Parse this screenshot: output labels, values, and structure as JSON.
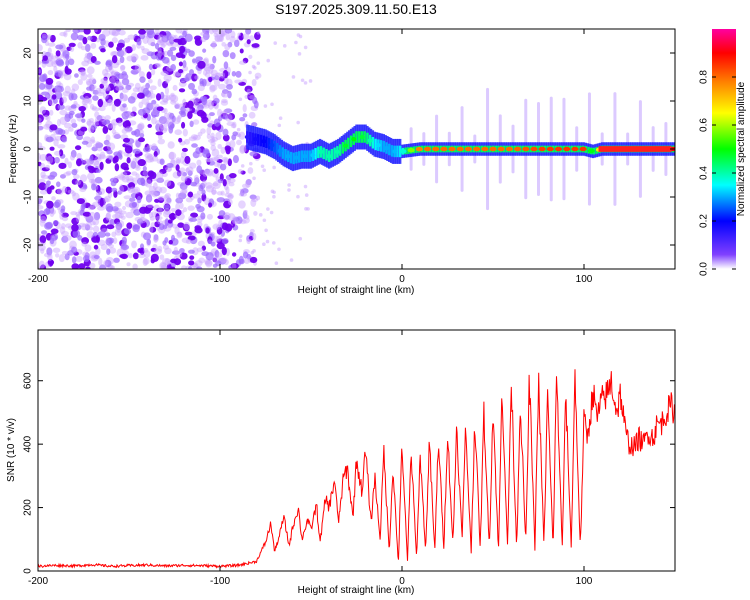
{
  "figure_title": "S197.2025.309.11.50.E13",
  "colorbar": {
    "label": "Normalized spectral amplitude",
    "range": [
      0,
      1
    ],
    "ticks": [
      0.0,
      0.2,
      0.4,
      0.6,
      0.8
    ],
    "tick_labels": [
      "0.0",
      "0.2",
      "0.4",
      "0.6",
      "0.8"
    ],
    "colormap": [
      "#ffffff",
      "#8040ff",
      "#0000ff",
      "#00ffff",
      "#00ff00",
      "#ffff00",
      "#ff8000",
      "#ff0000",
      "#ff00a0"
    ]
  },
  "colors": {
    "snr_line": "#ff0000",
    "scatter_low": "#c8a0ff",
    "scatter_high": "#7000ee"
  },
  "chart_data": [
    {
      "type": "heatmap",
      "title": "",
      "xlabel": "Height of straight line (km)",
      "ylabel": "Frequency (Hz)",
      "xlim": [
        -200,
        150
      ],
      "ylim": [
        -25,
        25
      ],
      "x_ticks": [
        -200,
        -100,
        0,
        100
      ],
      "x_tick_labels": [
        "-200",
        "-100",
        "0",
        "100"
      ],
      "y_ticks": [
        -20,
        -10,
        0,
        10,
        20
      ],
      "y_tick_labels": [
        "-20",
        "-10",
        "0",
        "10",
        "20"
      ],
      "noise_region": {
        "x_range": [
          -200,
          -85
        ],
        "note": "scattered low-amplitude noise across all frequencies"
      },
      "signal_track": {
        "x": [
          -85,
          -80,
          -75,
          -70,
          -65,
          -60,
          -55,
          -50,
          -45,
          -40,
          -35,
          -30,
          -25,
          -20,
          -15,
          -10,
          -5,
          0,
          10,
          20,
          40,
          60,
          80,
          100,
          105,
          110,
          120,
          130,
          140,
          150
        ],
        "frequency": [
          2.5,
          2,
          1.5,
          0.5,
          -1,
          -2,
          -1.5,
          -1.5,
          -0.5,
          -1.5,
          -0.5,
          1,
          2.5,
          2.5,
          1,
          0.5,
          -0.5,
          -0.5,
          0,
          0,
          0,
          0,
          0,
          0,
          -0.5,
          0,
          0,
          0,
          0,
          0
        ],
        "amplitude": [
          0.15,
          0.18,
          0.2,
          0.25,
          0.3,
          0.3,
          0.3,
          0.3,
          0.4,
          0.4,
          0.4,
          0.5,
          0.5,
          0.45,
          0.35,
          0.3,
          0.3,
          0.35,
          0.8,
          0.8,
          0.8,
          0.8,
          0.85,
          0.85,
          0.4,
          0.8,
          0.85,
          0.85,
          0.9,
          0.9
        ]
      }
    },
    {
      "type": "line",
      "title": "",
      "xlabel": "Height of straight line (km)",
      "ylabel": "SNR (10 * v/v)",
      "xlim": [
        -200,
        150
      ],
      "ylim": [
        0,
        760
      ],
      "x_ticks": [
        -200,
        -100,
        0,
        100
      ],
      "x_tick_labels": [
        "-200",
        "-100",
        "0",
        "100"
      ],
      "y_ticks": [
        0,
        200,
        400,
        600
      ],
      "y_tick_labels": [
        "0",
        "200",
        "400",
        "600"
      ],
      "series": [
        {
          "name": "SNR",
          "x": [
            -200,
            -190,
            -180,
            -170,
            -160,
            -150,
            -140,
            -130,
            -120,
            -110,
            -100,
            -90,
            -80,
            -75,
            -72,
            -70,
            -67,
            -65,
            -62,
            -60,
            -57,
            -55,
            -52,
            -50,
            -47,
            -45,
            -42,
            -40,
            -37,
            -35,
            -32,
            -30,
            -27,
            -25,
            -22,
            -20,
            -17,
            -15,
            -12,
            -10,
            -7,
            -5,
            -2,
            0,
            3,
            5,
            8,
            10,
            13,
            15,
            18,
            20,
            23,
            25,
            28,
            30,
            33,
            35,
            38,
            40,
            43,
            45,
            48,
            50,
            53,
            55,
            58,
            60,
            63,
            65,
            68,
            70,
            73,
            75,
            78,
            80,
            83,
            85,
            88,
            90,
            93,
            95,
            98,
            100,
            102,
            105,
            107,
            110,
            113,
            115,
            118,
            120,
            123,
            125,
            128,
            130,
            133,
            135,
            138,
            140,
            143,
            145,
            148,
            150
          ],
          "values": [
            15,
            18,
            16,
            20,
            15,
            17,
            19,
            16,
            18,
            17,
            15,
            18,
            30,
            90,
            150,
            60,
            120,
            170,
            80,
            140,
            200,
            100,
            160,
            130,
            210,
            90,
            230,
            200,
            290,
            150,
            300,
            320,
            170,
            350,
            250,
            380,
            150,
            300,
            100,
            380,
            60,
            330,
            20,
            400,
            30,
            380,
            40,
            370,
            60,
            410,
            60,
            420,
            70,
            440,
            80,
            460,
            100,
            450,
            60,
            480,
            70,
            500,
            70,
            520,
            60,
            580,
            70,
            600,
            70,
            540,
            80,
            610,
            70,
            600,
            80,
            560,
            70,
            630,
            70,
            560,
            70,
            620,
            70,
            480,
            420,
            570,
            480,
            540,
            560,
            600,
            500,
            560,
            430,
            400,
            390,
            420,
            400,
            440,
            420,
            460,
            470,
            500,
            520,
            500
          ]
        }
      ]
    }
  ]
}
